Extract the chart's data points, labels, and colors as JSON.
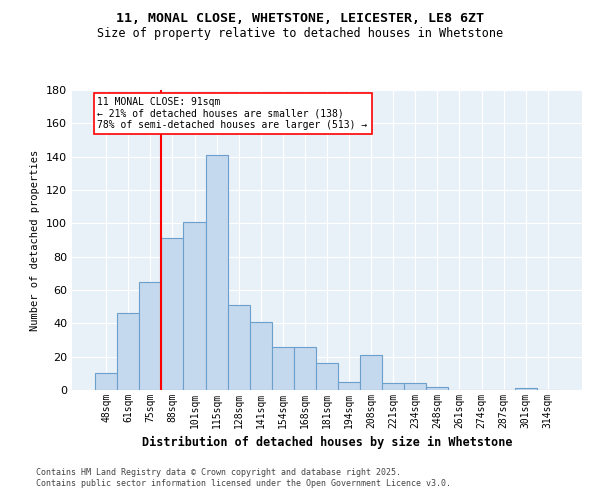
{
  "title_line1": "11, MONAL CLOSE, WHETSTONE, LEICESTER, LE8 6ZT",
  "title_line2": "Size of property relative to detached houses in Whetstone",
  "xlabel": "Distribution of detached houses by size in Whetstone",
  "ylabel": "Number of detached properties",
  "categories": [
    "48sqm",
    "61sqm",
    "75sqm",
    "88sqm",
    "101sqm",
    "115sqm",
    "128sqm",
    "141sqm",
    "154sqm",
    "168sqm",
    "181sqm",
    "194sqm",
    "208sqm",
    "221sqm",
    "234sqm",
    "248sqm",
    "261sqm",
    "274sqm",
    "287sqm",
    "301sqm",
    "314sqm"
  ],
  "values": [
    10,
    46,
    65,
    91,
    101,
    141,
    51,
    41,
    26,
    26,
    16,
    5,
    21,
    4,
    4,
    2,
    0,
    0,
    0,
    1,
    0
  ],
  "bar_color": "#c5d9ee",
  "bar_edge_color": "#6ca0cc",
  "vline_x_index": 2.5,
  "vline_color": "red",
  "annotation_text": "11 MONAL CLOSE: 91sqm\n← 21% of detached houses are smaller (138)\n78% of semi-detached houses are larger (513) →",
  "annotation_box_color": "white",
  "annotation_box_edge": "red",
  "footer": "Contains HM Land Registry data © Crown copyright and database right 2025.\nContains public sector information licensed under the Open Government Licence v3.0.",
  "bg_color": "#dde8f4",
  "plot_bg_color": "#e8f0f8",
  "ylim": [
    0,
    180
  ],
  "yticks": [
    0,
    20,
    40,
    60,
    80,
    100,
    120,
    140,
    160,
    180
  ]
}
